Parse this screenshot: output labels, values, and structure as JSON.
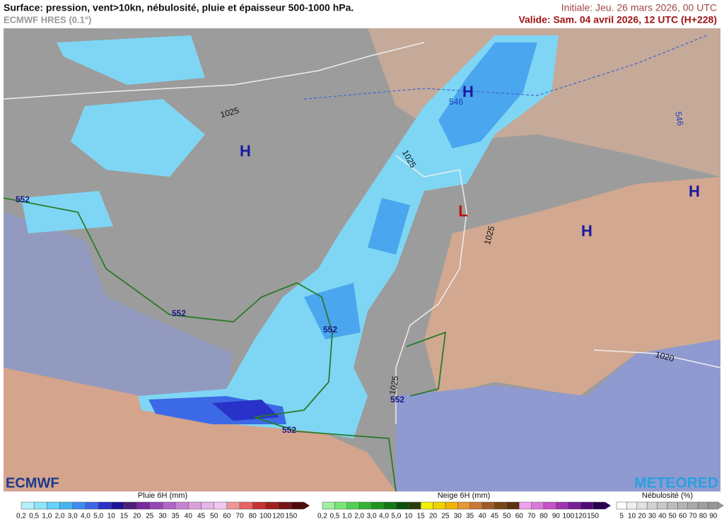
{
  "header": {
    "title": "Surface: pression, vent>10kn, nébulosité, pluie et épaisseur 500-1000 hPa.",
    "model": "ECMWF HRES (0.1°)",
    "initial": "Initiale: Jeu. 26 mars 2026, 00 UTC",
    "valid": "Valide: Sam. 04 avril 2026, 12 UTC (H+228)"
  },
  "map": {
    "highs": [
      "H",
      "H",
      "H",
      "H"
    ],
    "lows": [
      "L"
    ],
    "isobars": [
      "1025",
      "1025",
      "1025",
      "1025",
      "1020"
    ],
    "thickness": [
      "546",
      "546",
      "552",
      "552",
      "552",
      "552",
      "552"
    ]
  },
  "logos": {
    "left": "ECMWF",
    "right": "METEORED"
  },
  "legends": [
    {
      "title": "Pluie 6H (mm)",
      "labels": [
        "0,2",
        "0,5",
        "1,0",
        "2,0",
        "3,0",
        "4,0",
        "5,0",
        "10",
        "15",
        "20",
        "25",
        "30",
        "35",
        "40",
        "45",
        "50",
        "60",
        "70",
        "80",
        "100",
        "120",
        "150"
      ],
      "colors": [
        "#b4f0fa",
        "#8ce6fa",
        "#64d2fa",
        "#46b4f0",
        "#3c8cf0",
        "#3c64e6",
        "#2832c8",
        "#1e1496",
        "#501e78",
        "#7828a0",
        "#9646b4",
        "#b464c8",
        "#c882d2",
        "#dca0dc",
        "#e6b4e6",
        "#f0c8f0",
        "#f09696",
        "#e66464",
        "#c83232",
        "#a01e1e",
        "#781414",
        "#500a0a"
      ]
    },
    {
      "title": "Neige 6H (mm)",
      "labels": [
        "0,2",
        "0,5",
        "1,0",
        "2,0",
        "3,0",
        "4,0",
        "5,0",
        "10",
        "15",
        "20",
        "25",
        "30",
        "35",
        "40",
        "45",
        "50",
        "60",
        "70",
        "80",
        "90",
        "100",
        "120",
        "150"
      ],
      "colors": [
        "#a0f0a0",
        "#78e678",
        "#50d250",
        "#32b432",
        "#1e961e",
        "#147814",
        "#0a500a",
        "#283c0a",
        "#f0f000",
        "#f0d200",
        "#f0b400",
        "#e69632",
        "#c87832",
        "#a05a28",
        "#784614",
        "#5a3210",
        "#f0a0f0",
        "#dc78dc",
        "#c850c8",
        "#a032b4",
        "#781e96",
        "#500a78",
        "#280050"
      ]
    },
    {
      "title": "Nébulosité (%)",
      "labels": [
        "5",
        "10",
        "20",
        "30",
        "40",
        "50",
        "60",
        "70",
        "80",
        "90"
      ],
      "colors": [
        "#ffffff",
        "#f0f0f0",
        "#e1e1e1",
        "#d2d2d2",
        "#c8c8c8",
        "#bebebe",
        "#b4b4b4",
        "#aaaaaa",
        "#a0a0a0",
        "#969696"
      ]
    }
  ]
}
